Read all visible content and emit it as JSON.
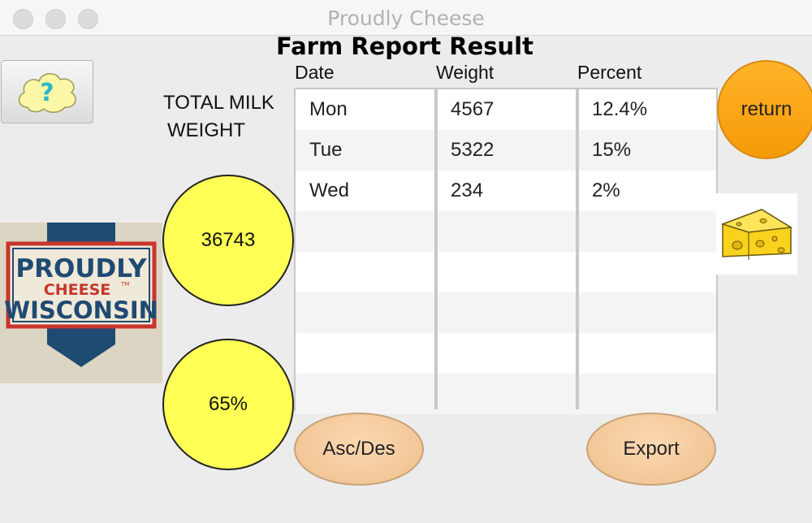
{
  "window": {
    "title": "Proudly Cheese"
  },
  "report": {
    "title": "Farm Report Result"
  },
  "summary": {
    "label_line1": "TOTAL MILK",
    "label_line2": "WEIGHT",
    "total_weight": "36743",
    "percent": "65%"
  },
  "table": {
    "columns": [
      "Date",
      "Weight",
      "Percent"
    ],
    "rows": [
      {
        "date": "Mon",
        "weight": "4567",
        "percent": "12.4%"
      },
      {
        "date": "Tue",
        "weight": "5322",
        "percent": "15%"
      },
      {
        "date": "Wed",
        "weight": "234",
        "percent": "2%"
      }
    ]
  },
  "buttons": {
    "return": "return",
    "sort": "Asc/Des",
    "export": "Export",
    "help_icon": "cloud-question-icon"
  },
  "logo": {
    "line1": "PROUDLY",
    "line2": "CHEESE",
    "tm": "TM",
    "line3": "WISCONSIN"
  },
  "colors": {
    "circle_fill": "#ffff55",
    "return_button": "#f7a30f",
    "pill_button": "#f3c79a",
    "logo_red": "#c8352c",
    "logo_navy": "#1f4a72"
  }
}
